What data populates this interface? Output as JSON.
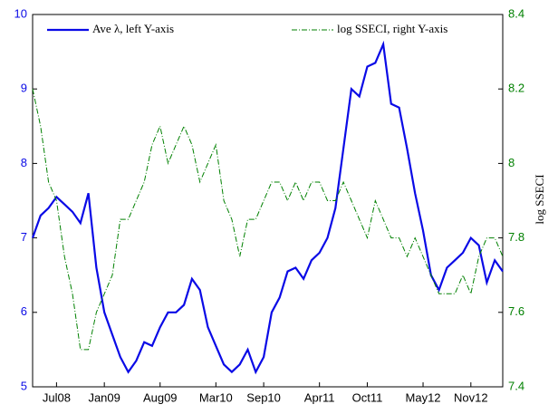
{
  "chart_data": {
    "type": "line",
    "y2label": "log SSECI",
    "x": [
      "2008-04",
      "2008-05",
      "2008-06",
      "2008-07",
      "2008-08",
      "2008-09",
      "2008-10",
      "2008-11",
      "2008-12",
      "2009-01",
      "2009-02",
      "2009-03",
      "2009-04",
      "2009-05",
      "2009-06",
      "2009-07",
      "2009-08",
      "2009-09",
      "2009-10",
      "2009-11",
      "2009-12",
      "2010-01",
      "2010-02",
      "2010-03",
      "2010-04",
      "2010-05",
      "2010-06",
      "2010-07",
      "2010-08",
      "2010-09",
      "2010-10",
      "2010-11",
      "2010-12",
      "2011-01",
      "2011-02",
      "2011-03",
      "2011-04",
      "2011-05",
      "2011-06",
      "2011-07",
      "2011-08",
      "2011-09",
      "2011-10",
      "2011-11",
      "2011-12",
      "2012-01",
      "2012-02",
      "2012-03",
      "2012-04",
      "2012-05",
      "2012-06",
      "2012-07",
      "2012-08",
      "2012-09",
      "2012-10",
      "2012-11",
      "2012-12",
      "2013-01",
      "2013-02",
      "2013-03"
    ],
    "series": [
      {
        "name": "Ave λ, left Y-axis",
        "color": "#0a0ae6",
        "axis": "y",
        "dash": false,
        "values": [
          7.0,
          7.3,
          7.4,
          7.55,
          7.45,
          7.35,
          7.2,
          7.6,
          6.6,
          6.0,
          5.7,
          5.4,
          5.2,
          5.35,
          5.6,
          5.55,
          5.8,
          6.0,
          6.0,
          6.1,
          6.45,
          6.3,
          5.8,
          5.55,
          5.3,
          5.2,
          5.3,
          5.5,
          5.2,
          5.4,
          6.0,
          6.2,
          6.55,
          6.6,
          6.45,
          6.7,
          6.8,
          7.0,
          7.4,
          8.2,
          9.0,
          8.9,
          9.3,
          9.35,
          9.6,
          8.8,
          8.75,
          8.2,
          7.6,
          7.1,
          6.5,
          6.3,
          6.6,
          6.7,
          6.8,
          7.0,
          6.9,
          6.4,
          6.7,
          6.55
        ]
      },
      {
        "name": "log SSECI, right Y-axis",
        "color": "#008000",
        "axis": "y2",
        "dash": true,
        "values": [
          8.2,
          8.1,
          7.95,
          7.9,
          7.75,
          7.65,
          7.5,
          7.5,
          7.6,
          7.65,
          7.7,
          7.85,
          7.85,
          7.9,
          7.95,
          8.05,
          8.1,
          8.0,
          8.05,
          8.1,
          8.05,
          7.95,
          8.0,
          8.05,
          7.9,
          7.85,
          7.75,
          7.85,
          7.85,
          7.9,
          7.95,
          7.95,
          7.9,
          7.95,
          7.9,
          7.95,
          7.95,
          7.9,
          7.9,
          7.95,
          7.9,
          7.85,
          7.8,
          7.9,
          7.85,
          7.8,
          7.8,
          7.75,
          7.8,
          7.75,
          7.7,
          7.65,
          7.65,
          7.65,
          7.7,
          7.65,
          7.75,
          7.8,
          7.8,
          7.75
        ]
      }
    ],
    "xlim": [
      "2008-04",
      "2013-03"
    ],
    "xticks": [
      {
        "value": "2008-07",
        "label": "Jul08"
      },
      {
        "value": "2009-01",
        "label": "Jan09"
      },
      {
        "value": "2009-08",
        "label": "Aug09"
      },
      {
        "value": "2010-03",
        "label": "Mar10"
      },
      {
        "value": "2010-09",
        "label": "Sep10"
      },
      {
        "value": "2011-04",
        "label": "Apr11"
      },
      {
        "value": "2011-10",
        "label": "Oct11"
      },
      {
        "value": "2012-05",
        "label": "May12"
      },
      {
        "value": "2012-11",
        "label": "Nov12"
      }
    ],
    "ylim": [
      5,
      10
    ],
    "yticks": [
      5,
      6,
      7,
      8,
      9,
      10
    ],
    "y2lim": [
      7.4,
      8.4
    ],
    "y2ticks": [
      7.4,
      7.6,
      7.8,
      8,
      8.2,
      8.4
    ],
    "ycolor": "#0a0ae6",
    "y2color": "#008000",
    "grid": false
  }
}
